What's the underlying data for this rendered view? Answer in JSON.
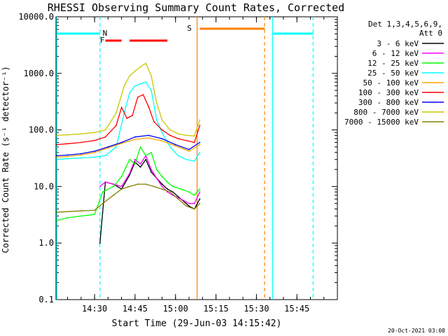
{
  "chart_data": {
    "type": "line",
    "title": "RHESSI Observing Summary Count Rates, Corrected",
    "xlabel": "Start Time (29-Jun-03 14:15:42)",
    "ylabel": "Corrected Count Rate (s⁻¹ detector⁻¹)",
    "y_scale": "log",
    "ylim": [
      0.1,
      10000
    ],
    "xlim": [
      "14:15:42",
      "16:00:00"
    ],
    "x_ticks": [
      "14:30",
      "14:45",
      "15:00",
      "15:15",
      "15:30",
      "15:45"
    ],
    "y_ticks": [
      "0.1",
      "1.0",
      "10.0",
      "100.0",
      "1000.0",
      "10000.0"
    ],
    "legend_header": [
      "Det 1,3,4,5,6,9,",
      "Att 0"
    ],
    "legend_position": "right",
    "series": [
      {
        "name": "3 - 6 keV",
        "color": "#000000",
        "x": [
          "14:32",
          "14:34",
          "14:37",
          "14:40",
          "14:43",
          "14:45",
          "14:47",
          "14:49",
          "14:51",
          "14:53",
          "14:55",
          "14:57",
          "14:59",
          "15:02",
          "15:05",
          "15:07",
          "15:09"
        ],
        "y": [
          1.0,
          12,
          11,
          9,
          16,
          27,
          22,
          30,
          18,
          14,
          11,
          9,
          8,
          6,
          4.5,
          4,
          6
        ]
      },
      {
        "name": "6 - 12 keV",
        "color": "#ff00ff",
        "x": [
          "14:32",
          "14:34",
          "14:37",
          "14:40",
          "14:43",
          "14:45",
          "14:47",
          "14:49",
          "14:51",
          "14:53",
          "14:55",
          "14:57",
          "14:59",
          "15:02",
          "15:05",
          "15:07",
          "15:09"
        ],
        "y": [
          10,
          12,
          11,
          10,
          17,
          30,
          25,
          35,
          20,
          14,
          10,
          8,
          7,
          6,
          5,
          5,
          8
        ]
      },
      {
        "name": "12 - 25 keV",
        "color": "#00ff00",
        "x": [
          "14:16",
          "14:20",
          "14:25",
          "14:30",
          "14:33",
          "14:37",
          "14:40",
          "14:43",
          "14:45",
          "14:47",
          "14:49",
          "14:51",
          "14:53",
          "14:55",
          "14:57",
          "14:59",
          "15:02",
          "15:05",
          "15:07",
          "15:09"
        ],
        "y": [
          2.5,
          2.8,
          3.0,
          3.2,
          8,
          10,
          15,
          30,
          25,
          50,
          35,
          40,
          20,
          15,
          12,
          10,
          9,
          8,
          7,
          9
        ]
      },
      {
        "name": "25 - 50 keV",
        "color": "#00ffff",
        "x": [
          "14:16",
          "14:20",
          "14:25",
          "14:30",
          "14:34",
          "14:38",
          "14:41",
          "14:43",
          "14:45",
          "14:47",
          "14:49",
          "14:51",
          "14:53",
          "14:55",
          "14:58",
          "15:01",
          "15:04",
          "15:07",
          "15:09"
        ],
        "y": [
          30,
          31,
          32,
          33,
          35,
          50,
          200,
          450,
          600,
          650,
          700,
          500,
          150,
          90,
          50,
          35,
          30,
          28,
          40
        ]
      },
      {
        "name": "50 - 100 keV",
        "color": "#ffa500",
        "x": [
          "14:16",
          "14:20",
          "14:25",
          "14:30",
          "14:35",
          "14:40",
          "14:45",
          "14:50",
          "14:55",
          "15:00",
          "15:05",
          "15:09"
        ],
        "y": [
          33,
          34,
          36,
          40,
          48,
          58,
          68,
          72,
          64,
          52,
          42,
          55
        ]
      },
      {
        "name": "100 - 300 keV",
        "color": "#ff0000",
        "x": [
          "14:16",
          "14:20",
          "14:25",
          "14:30",
          "14:34",
          "14:38",
          "14:40",
          "14:42",
          "14:44",
          "14:46",
          "14:48",
          "14:50",
          "14:52",
          "14:55",
          "14:58",
          "15:01",
          "15:04",
          "15:07",
          "15:09"
        ],
        "y": [
          55,
          57,
          60,
          65,
          75,
          120,
          250,
          160,
          180,
          380,
          420,
          260,
          140,
          100,
          80,
          70,
          65,
          60,
          120
        ]
      },
      {
        "name": "300 - 800 keV",
        "color": "#0000ff",
        "x": [
          "14:16",
          "14:20",
          "14:25",
          "14:30",
          "14:35",
          "14:40",
          "14:45",
          "14:50",
          "14:55",
          "15:00",
          "15:05",
          "15:09"
        ],
        "y": [
          35,
          36,
          38,
          42,
          50,
          60,
          75,
          80,
          70,
          55,
          45,
          60
        ]
      },
      {
        "name": "800 - 7000 keV",
        "color": "#c8c800",
        "x": [
          "14:16",
          "14:20",
          "14:25",
          "14:30",
          "14:34",
          "14:38",
          "14:41",
          "14:43",
          "14:45",
          "14:47",
          "14:49",
          "14:51",
          "14:53",
          "14:55",
          "14:58",
          "15:01",
          "15:04",
          "15:07",
          "15:09"
        ],
        "y": [
          80,
          82,
          85,
          90,
          100,
          200,
          600,
          900,
          1100,
          1300,
          1500,
          900,
          300,
          150,
          100,
          85,
          80,
          78,
          150
        ]
      },
      {
        "name": "7000 - 15000 keV",
        "color": "#808000",
        "x": [
          "14:16",
          "14:20",
          "14:25",
          "14:30",
          "14:33",
          "14:37",
          "14:40",
          "14:43",
          "14:46",
          "14:49",
          "14:52",
          "14:55",
          "14:58",
          "15:01",
          "15:04",
          "15:07",
          "15:09"
        ],
        "y": [
          3.5,
          3.6,
          3.7,
          3.8,
          5,
          7,
          9,
          10,
          11,
          11,
          10,
          9,
          8,
          6,
          4.5,
          4,
          5
        ]
      }
    ],
    "annotations": [
      {
        "text": "N",
        "color": "#00ffff"
      },
      {
        "text": "F",
        "color": "#ff0000"
      },
      {
        "text": "S",
        "color": "#ff8000"
      }
    ],
    "timestamp": "20-Oct-2021 03:08"
  }
}
